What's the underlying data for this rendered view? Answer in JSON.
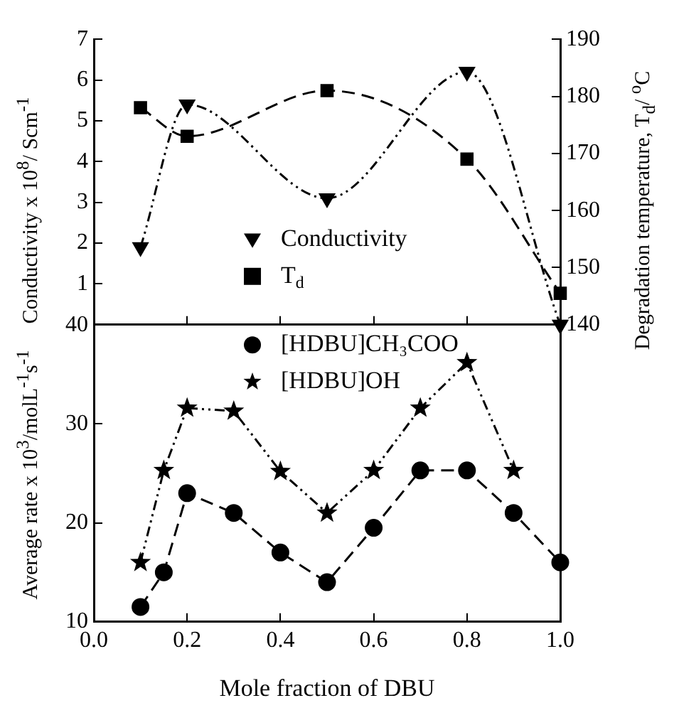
{
  "chart_data": [
    {
      "type": "line",
      "ylabel": "Conductivity x 10$^{8}$/ Scm$^{-1}$",
      "y2label": "Degradation temperature, T$_{d}$/ $^{o}$C",
      "x": [
        0.1,
        0.2,
        0.5,
        0.8,
        1.0
      ],
      "xlim": [
        0,
        1
      ],
      "xticks": [
        0,
        0.2,
        0.4,
        0.6,
        0.8,
        1
      ],
      "ylim": [
        0,
        7
      ],
      "yticks": [
        1,
        2,
        3,
        4,
        5,
        6,
        7
      ],
      "y2lim": [
        140,
        190
      ],
      "y2ticks": [
        140,
        150,
        160,
        170,
        180,
        190
      ],
      "tick_labels": "y",
      "legend": "bottom",
      "series": [
        {
          "name": "Conductivity",
          "color": "#000000",
          "marker": "triangle",
          "line_style": "dotted",
          "values": [
            1.9,
            5.4,
            3.1,
            6.2,
            0
          ]
        },
        {
          "name": "T$_{d}$",
          "color": "#000000",
          "marker": "square",
          "line_style": "dashed",
          "axis": "y2",
          "values": [
            178,
            173,
            181,
            169,
            145.5
          ]
        }
      ]
    },
    {
      "type": "line",
      "ylabel": "Average rate x 10$^{3}$/molL$^{-1}$s$^{-1}$",
      "xlabel": "Mole fraction of DBU",
      "x": [
        0.1,
        0.15,
        0.2,
        0.3,
        0.4,
        0.5,
        0.6,
        0.7,
        0.8,
        0.9,
        1.0
      ],
      "xlim": [
        0,
        1
      ],
      "xticks": [
        {
          "value": 0,
          "label": "0.0"
        },
        0.2,
        0.4,
        0.6,
        0.8,
        {
          "value": 1,
          "label": "1.0"
        }
      ],
      "ylim": [
        10,
        40
      ],
      "yticks": [
        10,
        20,
        30,
        40
      ],
      "legend": "top",
      "series": [
        {
          "name": "[HDBU]CH₃COO",
          "color": "#000000",
          "marker": "circle",
          "line_style": "dashed",
          "values": [
            11.5,
            15,
            23,
            21,
            17,
            14,
            19.5,
            25.3,
            25.3,
            21,
            16
          ]
        },
        {
          "name": "[HDBU]OH",
          "color": "#000000",
          "marker": "star",
          "line_style": "dotted",
          "values": [
            16,
            25.3,
            31.6,
            31.3,
            25.2,
            21,
            25.3,
            31.6,
            36.2,
            25.3,
            null
          ]
        }
      ]
    }
  ]
}
